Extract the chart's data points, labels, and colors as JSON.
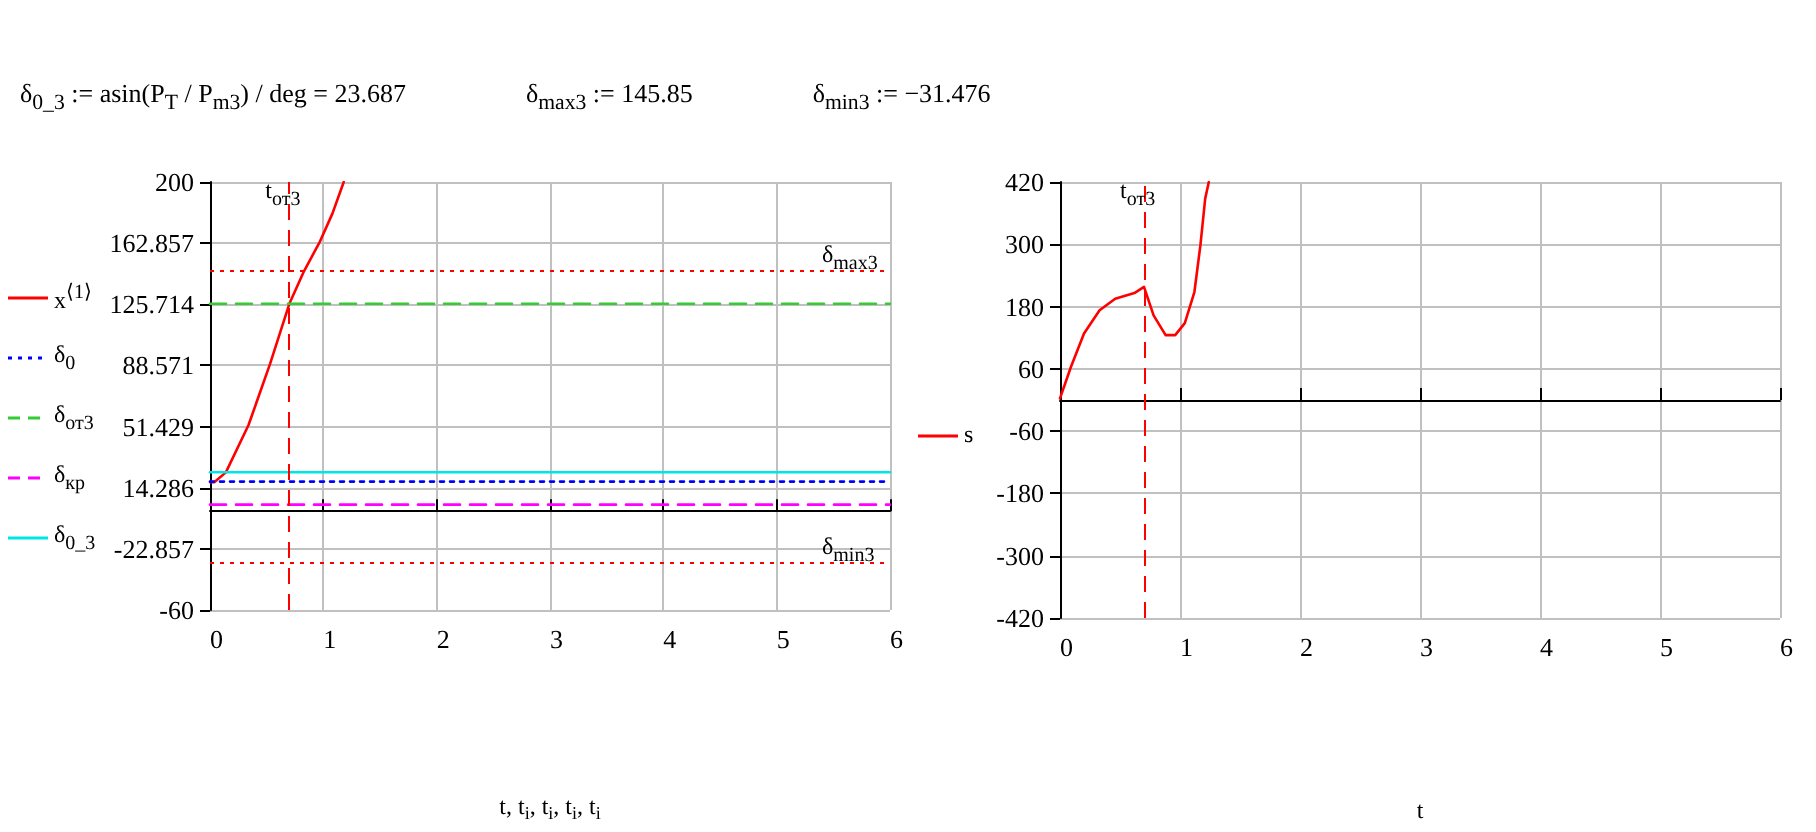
{
  "chart_data": [
    {
      "type": "other",
      "annotations": [
        "δ$_{0_3}$ := asin(P$_{T}$ / P$_{m3}$) / deg = 23.687",
        "δ$_{max3}$ := 145.85",
        "δ$_{min3}$ := −31.476"
      ]
    },
    {
      "type": "line",
      "xlabel": "t, t$_{i}$, t$_{i}$, t$_{i}$, t$_{i}$",
      "xlim": [
        0,
        6
      ],
      "xticks": [
        0,
        1,
        2,
        3,
        4,
        5,
        6
      ],
      "ylim": [
        -60,
        200
      ],
      "yticks": [
        -60,
        -22.857,
        14.286,
        51.429,
        88.571,
        125.714,
        162.857,
        200
      ],
      "grid": true,
      "legend": "left",
      "marker": "none",
      "series": [
        {
          "name": "x$^{⟨1⟩}$",
          "color": "#ff0000",
          "line_style": "solid",
          "x": [
            0,
            0.04,
            0.14,
            0.34,
            0.53,
            0.7,
            0.83,
            0.97,
            1.08,
            1.18
          ],
          "values": [
            17.7,
            17.7,
            23.6,
            52.4,
            89.5,
            126,
            145.9,
            163.8,
            180.8,
            200
          ]
        },
        {
          "name": "δ$_{0}$",
          "color": "#0000ff",
          "line_style": "dotted",
          "x": [
            0,
            6
          ],
          "values": [
            18,
            18
          ]
        },
        {
          "name": "δ$_{от3}$",
          "color": "#33cc33",
          "line_style": "dashed",
          "x": [
            0,
            6
          ],
          "values": [
            126,
            126
          ]
        },
        {
          "name": "δ$_{кр}$",
          "color": "#ff00ff",
          "line_style": "dashed",
          "x": [
            0,
            6
          ],
          "values": [
            4,
            4
          ]
        },
        {
          "name": "δ$_{0_3}$",
          "color": "#00e5e5",
          "line_style": "solid",
          "x": [
            0,
            6
          ],
          "values": [
            23.687,
            23.687
          ]
        }
      ],
      "ref_lines": [
        {
          "axis": "y",
          "value": 145.85,
          "label": "δ$_{max3}$",
          "color": "#ff0000",
          "line_style": "dotted"
        },
        {
          "axis": "y",
          "value": -31.476,
          "label": "δ$_{min3}$",
          "color": "#ff0000",
          "line_style": "dotted"
        },
        {
          "axis": "x",
          "value": 0.7,
          "label": "t$_{от3}$",
          "color": "#ff0000",
          "line_style": "dashed"
        }
      ]
    },
    {
      "type": "line",
      "xlabel": "t",
      "xlim": [
        0,
        6
      ],
      "xticks": [
        0,
        1,
        2,
        3,
        4,
        5,
        6
      ],
      "ylim": [
        -420,
        420
      ],
      "yticks": [
        -420,
        -300,
        -180,
        -60,
        60,
        180,
        300,
        420
      ],
      "grid": true,
      "legend": "left",
      "marker": "none",
      "series": [
        {
          "name": "s",
          "color": "#ff0000",
          "line_style": "solid",
          "x": [
            0,
            0.09,
            0.2,
            0.33,
            0.46,
            0.62,
            0.7,
            0.78,
            0.88,
            0.96,
            1.04,
            1.12,
            1.17,
            1.21,
            1.24
          ],
          "values": [
            3,
            63,
            128,
            173,
            195,
            206,
            218,
            163,
            125,
            125,
            148,
            208,
            298,
            388,
            420
          ]
        }
      ],
      "ref_lines": [
        {
          "axis": "x",
          "value": 0.7,
          "label": "t$_{от3}$",
          "color": "#ff0000",
          "line_style": "dashed"
        }
      ]
    }
  ]
}
